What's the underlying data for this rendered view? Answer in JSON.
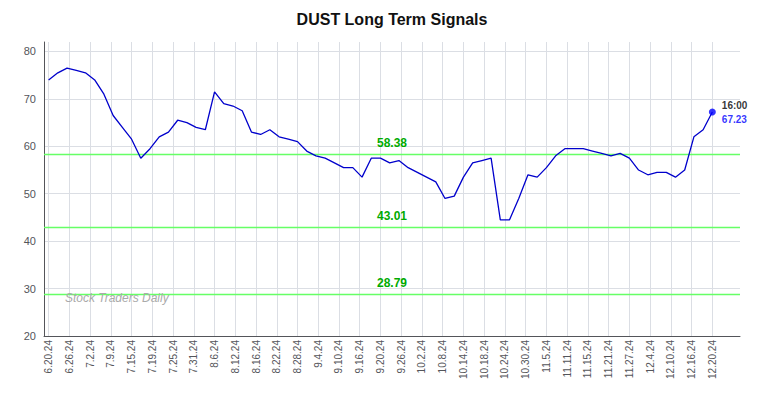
{
  "chart_data": {
    "type": "line",
    "title": "DUST Long Term Signals",
    "color": "#0000cc",
    "x": [
      0,
      1,
      2,
      3,
      4,
      5,
      6,
      7,
      8,
      9,
      10,
      11,
      12,
      13,
      14,
      15,
      16,
      17,
      18,
      19,
      20,
      21,
      22,
      23,
      24,
      25,
      26,
      27,
      28,
      29,
      30,
      31,
      32,
      33,
      34,
      35,
      36,
      37,
      38,
      39,
      40,
      41,
      42,
      43,
      44,
      45,
      46,
      47,
      48,
      49,
      50,
      51,
      52,
      53,
      54,
      55,
      56,
      57,
      58,
      59,
      60,
      61,
      62,
      63,
      64,
      65,
      66,
      67,
      68,
      69,
      70,
      71,
      72
    ],
    "values": [
      74.0,
      75.5,
      76.5,
      76.0,
      75.5,
      74.0,
      71.0,
      66.5,
      64.0,
      61.5,
      57.5,
      59.5,
      62.0,
      63.0,
      65.5,
      65.0,
      64.0,
      63.5,
      71.5,
      69.0,
      68.5,
      67.5,
      63.0,
      62.5,
      63.5,
      62.0,
      61.5,
      61.0,
      59.0,
      58.0,
      57.5,
      56.5,
      55.5,
      55.5,
      53.5,
      57.5,
      57.5,
      56.5,
      57.0,
      55.5,
      54.5,
      53.5,
      52.5,
      49.0,
      49.5,
      53.5,
      56.5,
      57.0,
      57.5,
      44.5,
      44.5,
      49.0,
      54.0,
      53.5,
      55.5,
      58.0,
      59.5,
      59.5,
      59.5,
      59.0,
      58.5,
      58.0,
      58.5,
      57.5,
      55.0,
      54.0,
      54.5,
      54.5,
      53.5,
      55.0,
      62.0,
      63.5,
      67.23
    ],
    "xlim": [
      -0.5,
      75
    ],
    "xticks": [
      {
        "value": 0,
        "label": "6.20.24"
      },
      {
        "value": 2.25,
        "label": "6.26.24"
      },
      {
        "value": 4.5,
        "label": "7.2.24"
      },
      {
        "value": 6.75,
        "label": "7.9.24"
      },
      {
        "value": 9,
        "label": "7.15.24"
      },
      {
        "value": 11.25,
        "label": "7.19.24"
      },
      {
        "value": 13.5,
        "label": "7.25.24"
      },
      {
        "value": 15.75,
        "label": "7.31.24"
      },
      {
        "value": 18,
        "label": "8.6.24"
      },
      {
        "value": 20.25,
        "label": "8.12.24"
      },
      {
        "value": 22.5,
        "label": "8.16.24"
      },
      {
        "value": 24.75,
        "label": "8.22.24"
      },
      {
        "value": 27,
        "label": "8.28.24"
      },
      {
        "value": 29.25,
        "label": "9.4.24"
      },
      {
        "value": 31.5,
        "label": "9.10.24"
      },
      {
        "value": 33.75,
        "label": "9.16.24"
      },
      {
        "value": 36,
        "label": "9.20.24"
      },
      {
        "value": 38.25,
        "label": "9.26.24"
      },
      {
        "value": 40.5,
        "label": "10.2.24"
      },
      {
        "value": 42.75,
        "label": "10.8.24"
      },
      {
        "value": 45,
        "label": "10.14.24"
      },
      {
        "value": 47.25,
        "label": "10.18.24"
      },
      {
        "value": 49.5,
        "label": "10.24.24"
      },
      {
        "value": 51.75,
        "label": "10.30.24"
      },
      {
        "value": 54,
        "label": "11.5.24"
      },
      {
        "value": 56.25,
        "label": "11.11.24"
      },
      {
        "value": 58.5,
        "label": "11.15.24"
      },
      {
        "value": 60.75,
        "label": "11.21.24"
      },
      {
        "value": 63,
        "label": "11.27.24"
      },
      {
        "value": 65.25,
        "label": "12.4.24"
      },
      {
        "value": 67.5,
        "label": "12.10.24"
      },
      {
        "value": 69.75,
        "label": "12.16.24"
      },
      {
        "value": 72,
        "label": "12.20.24"
      }
    ],
    "ylim": [
      20,
      82
    ],
    "yticks": [
      20,
      30,
      40,
      50,
      60,
      70,
      80
    ],
    "grid": true,
    "hlines": {
      "values": [
        58.38,
        43.01,
        28.79
      ],
      "labels": [
        "58.38",
        "43.01",
        "28.79"
      ],
      "color": "#66ff66",
      "label_color": "#00aa00"
    },
    "last_point": {
      "label": "16:00",
      "value_label": "67.23",
      "color": "#0000ff",
      "label_color": "#000000"
    },
    "watermark": {
      "text": "Stock Traders Daily",
      "color": "#aaaaaa"
    }
  }
}
